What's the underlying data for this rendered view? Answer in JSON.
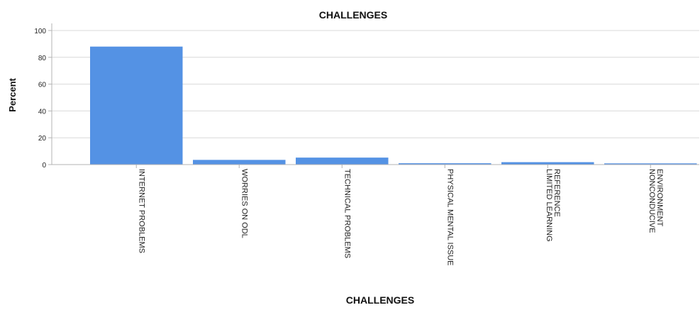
{
  "chart_data": {
    "type": "bar",
    "title": "CHALLENGES",
    "xlabel": "CHALLENGES",
    "ylabel": "Percent",
    "ylim": [
      0,
      100
    ],
    "yticks": [
      0,
      20,
      40,
      60,
      80,
      100
    ],
    "grid": true,
    "categories": [
      [
        "INTERNET PROBLEMS"
      ],
      [
        "WORRIES ON ODL"
      ],
      [
        "TECHNICAL PROBLEMS"
      ],
      [
        "PHYSICAL MENTAL ISSUE"
      ],
      [
        "LIMITED LEARNING",
        "REFERENCE"
      ],
      [
        "NONCONDUCIVE",
        "ENVIRONMENT"
      ]
    ],
    "values": [
      88,
      3.5,
      5.2,
      1,
      1.8,
      0.9
    ],
    "bar_color": "#5492e4",
    "grid_color": "#d9d9d9",
    "axis_color": "#b3b3b3"
  }
}
